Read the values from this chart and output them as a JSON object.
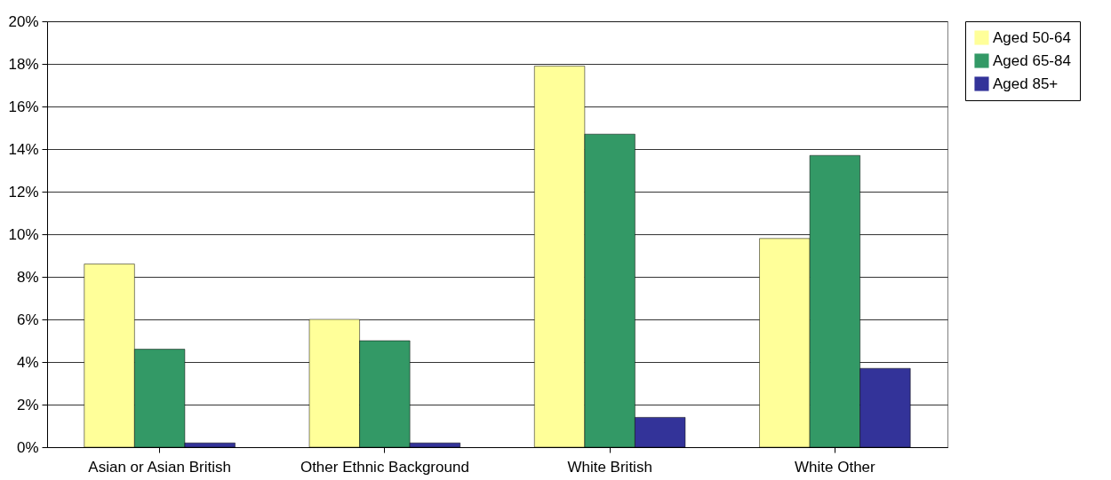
{
  "chart_data": {
    "type": "bar",
    "categories": [
      "Asian or Asian British",
      "Other Ethnic Background",
      "White British",
      "White Other"
    ],
    "series": [
      {
        "name": "Aged 50-64",
        "color": "#ffff99",
        "values": [
          8.6,
          6.0,
          17.9,
          9.8
        ]
      },
      {
        "name": "Aged 65-84",
        "color": "#339966",
        "values": [
          4.6,
          5.0,
          14.7,
          13.7
        ]
      },
      {
        "name": "Aged 85+",
        "color": "#333399",
        "values": [
          0.2,
          0.2,
          1.4,
          3.7
        ]
      }
    ],
    "ylim": [
      0,
      20
    ],
    "yticks": [
      {
        "value": 0,
        "label": "0%"
      },
      {
        "value": 2,
        "label": "2%"
      },
      {
        "value": 4,
        "label": "4%"
      },
      {
        "value": 6,
        "label": "6%"
      },
      {
        "value": 8,
        "label": "8%"
      },
      {
        "value": 10,
        "label": "10%"
      },
      {
        "value": 12,
        "label": "12%"
      },
      {
        "value": 14,
        "label": "14%"
      },
      {
        "value": 16,
        "label": "16%"
      },
      {
        "value": 18,
        "label": "18%"
      },
      {
        "value": 20,
        "label": "20%"
      }
    ],
    "grid": "y",
    "legend": "right"
  }
}
